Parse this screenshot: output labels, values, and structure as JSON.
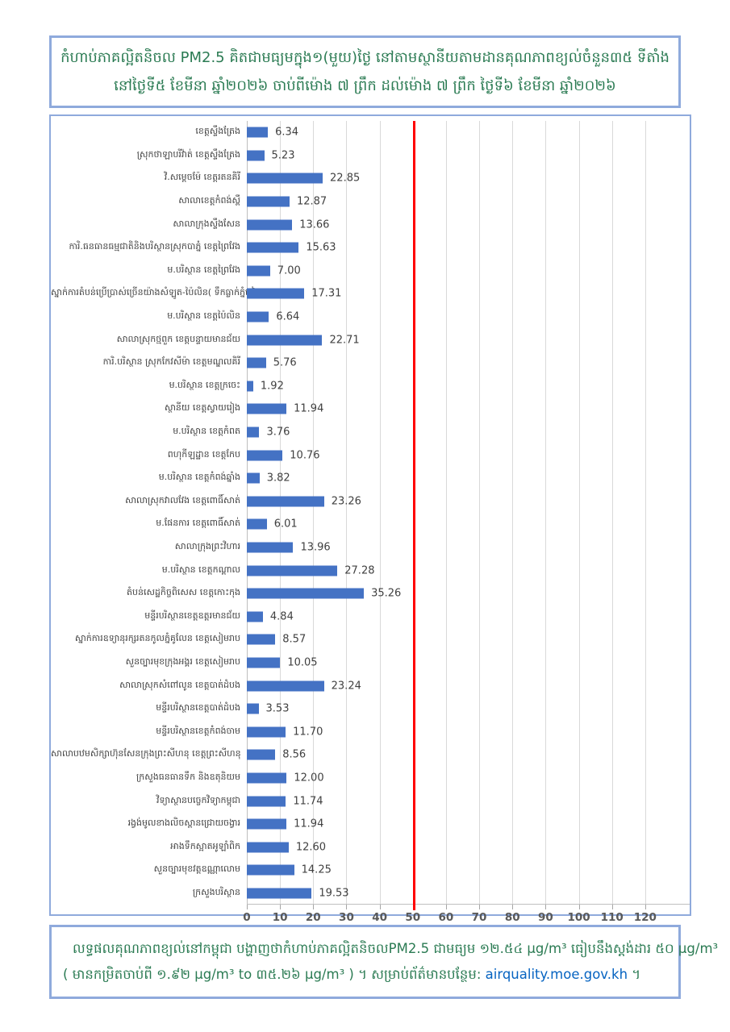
{
  "title_box": {
    "line1": "កំហាប់ភាគល្អិតនិចល PM2.5 គិតជាមធ្យមក្នុង១(មួយ)ថ្ងៃ នៅតាមស្ថានីយតាមដានគុណភាពខ្យល់ចំនួន៣៥ ទីតាំង",
    "line2": "នៅថ្ងៃទី៥ ខែមីនា ឆ្នាំ២០២៦ ចាប់ពីម៉ោង ៧ ព្រឹក ដល់ម៉ោង ៧ ព្រឹក ថ្ងៃទី៦ ខែមីនា ឆ្នាំ២០២៦"
  },
  "chart_data": {
    "type": "bar",
    "orientation": "horizontal",
    "title": "កំហាប់ភាគល្អិតនិចល PM2.5 គិតជាមធ្យមក្នុង១(មួយ)ថ្ងៃ នៅតាមស្ថានីយតាមដានគុណភាពខ្យល់ចំនួន៣៥ ទីតាំង នៅថ្ងៃទី៥ ខែមីនា ឆ្នាំ២០២៦ ចាប់ពីម៉ោង ៧ ព្រឹក ដល់ម៉ោង ៧ ព្រឹក ថ្ងៃទី៦ ខែមីនា ឆ្នាំ២០២៦",
    "xlabel": "",
    "ylabel": "",
    "units": "µg/m³",
    "xlim": [
      0,
      130
    ],
    "x_ticks": [
      0,
      10,
      20,
      30,
      40,
      50,
      60,
      70,
      80,
      90,
      100,
      110,
      120
    ],
    "grid": true,
    "legend": false,
    "bar_color": "#4472C4",
    "reference_line": {
      "value": 50,
      "color": "#FF0000"
    },
    "categories": [
      "ខេត្តស្ទឹងត្រែង",
      "ស្រុកថាឡាបរីវ៉ាត់ ខេត្តស្ទឹងត្រែង",
      "វិ.សម្ដេចម៉ែ ខេត្តរតនគិរី",
      "សាលាខេត្តកំពង់ស្ពឺ",
      "សាលាក្រុងស្ទឹងសែន",
      "ការិ.ធនធានធម្មជាតិនិងបរិស្ថានស្រុកបាភ្នំ ខេត្តព្រៃវែង",
      "ម.បរិស្ថាន ខេត្តព្រៃវែង",
      "ស្នាក់ការតំបន់ប្រើប្រាស់ច្រើនយ៉ាងសំឡូត-ប៉ៃលិន( ទឹកធ្លាក់ភ្នំខៀវ )",
      "ម.បរិស្ថាន ខេត្តប៉ៃលិន",
      "សាលាស្រុកថ្មពួក ខេត្តបន្ទាយមានជ័យ",
      "ការិ.បរិស្ថាន ស្រុកកែវសីម៉ា ខេត្តមណ្ឌលគិរី",
      "ម.បរិស្ថាន ខេត្តក្រចេះ",
      "ស្ថានីយ ខេត្តស្វាយរៀង",
      "ម.បរិស្ថាន ខេត្តកំពត",
      "ពហុកីឡដ្ឋាន ខេត្តកែប",
      "ម.បរិស្ថាន ខេត្តកំពង់ឆ្នាំង",
      "សាលាស្រុកវាលវែង ខេត្តពោធិ៍សាត់",
      "ម.ផែនការ ខេត្តពោធិ៍សាត់",
      "សាលាក្រុងព្រះវិហារ",
      "ម.បរិស្ថាន ខេត្តកណ្ដាល",
      "តំបន់សេដ្ឋកិច្ចពិសេស ខេត្តកោះកុង",
      "មន្ទីរបរិស្ថានខេត្តឧត្តរមានជ័យ",
      "ស្នាក់ការឧទ្យានុរក្សរតនកូលភ្នំគូលែន ខេត្តសៀមរាប",
      "សួនច្បារមុខក្រុងអង្គរ ខេត្តសៀមរាប",
      "សាលាស្រុកសំពៅលូន ខេត្តបាត់ដំបង",
      "មន្ទីរបរិស្ថានខេត្តបាត់ដំបង",
      "មន្ទីរបរិស្ថានខេត្តកំពង់ចាម",
      "សាលាបឋមសិក្សាហ៊ុនសែនក្រុងព្រះសីហនុ ខេត្តព្រះសីហនុ",
      "ក្រសួងធនធានទឹក និងឧតុនិយម",
      "វិទ្យាស្ថានបច្ចេកវិទ្យាកម្ពុជា",
      "រង្វង់មូលខាងលិចស្ពានជ្រោយចង្វារ",
      "អាងទឹកស្អាតអូឡាំពិក",
      "សួនច្បារមុខវត្តឧណ្ណាលោម",
      "ក្រសួងបរិស្ថាន"
    ],
    "values": [
      6.34,
      5.23,
      22.85,
      12.87,
      13.66,
      15.63,
      7.0,
      17.31,
      6.64,
      22.71,
      5.76,
      1.92,
      11.94,
      3.76,
      10.76,
      3.82,
      23.26,
      6.01,
      13.96,
      27.28,
      35.26,
      4.84,
      8.57,
      10.05,
      23.24,
      3.53,
      11.7,
      8.56,
      12.0,
      11.74,
      11.94,
      12.6,
      14.25,
      19.53
    ]
  },
  "footer_box": {
    "line1": "លទ្ធផលគុណភាពខ្យល់នៅកម្ពុជា បង្ហាញថាកំហាប់ភាគល្អិតនិចលPM2.5 ជាមធ្យម ១២.៥៤ µg/m³ ធៀបនឹងស្តង់ដារ ៥០ µg/m³",
    "line2_prefix": "( មានកម្រិតចាប់ពី ១.៩២ µg/m³ to ៣៥.២៦ µg/m³ ) ។ សម្រាប់ព័ត៌មានបន្ថែម: ",
    "link_text": "airquality.moe.gov.kh",
    "line2_suffix": " ។"
  },
  "colors": {
    "box_border": "#8FAADC",
    "title_text": "#2B7B53",
    "bar": "#4472C4",
    "reference_line": "#FF0000",
    "gridline": "#D9D9D9",
    "axis_text": "#595959",
    "value_text": "#404040",
    "link": "#0563C1"
  }
}
